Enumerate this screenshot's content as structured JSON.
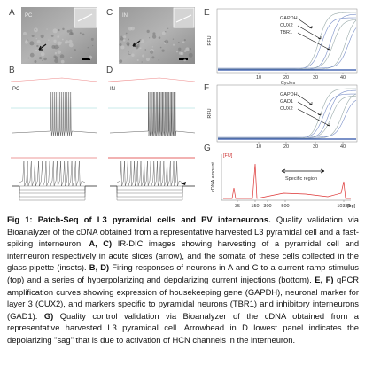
{
  "panels": {
    "A": {
      "label": "A",
      "cell": "PC"
    },
    "C": {
      "label": "C",
      "cell": "IN"
    },
    "B": {
      "label": "B",
      "cell": "PC"
    },
    "D": {
      "label": "D",
      "cell": "IN"
    },
    "E": {
      "label": "E",
      "y_label": "RFU",
      "x_label": "Cycles",
      "x_ticks": [
        "10",
        "20",
        "30",
        "40"
      ],
      "genes": [
        "GAPDH",
        "CUX2",
        "TBR1"
      ]
    },
    "F": {
      "label": "F",
      "y_label": "RFU",
      "x_ticks": [
        "10",
        "20",
        "30",
        "40"
      ],
      "genes": [
        "GAPDH",
        "GAD1",
        "CUX2"
      ]
    },
    "G": {
      "label": "G",
      "y_unit": "[FU]",
      "y_label": "cDNA amount",
      "x_ticks": [
        "35",
        "150",
        "300",
        "500",
        "10380"
      ],
      "x_unit": "[bp]",
      "annotation": "Specific region"
    }
  },
  "caption": {
    "title": "Fig 1: Patch-Seq of L3 pyramidal cells and PV interneurons.",
    "intro": "Quality validation via Bioanalyzer of the cDNA obtained from a representative harvested L3 pyramidal cell and a fast-spiking interneuron.",
    "parts": [
      {
        "label": "A, C)",
        "text": "IR-DIC images showing harvesting of a pyramidal cell and interneuron respectively in acute slices (arrow), and the somata of these cells collected in the glass pipette (insets)."
      },
      {
        "label": "B, D)",
        "text": "Firing responses of neurons in A and C to a current ramp stimulus (top) and a series of hyperpolarizing and depolarizing current injections (bottom)."
      },
      {
        "label": "E, F)",
        "text": "qPCR amplification curves showing expression of housekeeping gene (GAPDH), neuronal marker for layer 3 (CUX2), and markers specific to pyramidal neurons (TBR1) and inhibitory interneurons (GAD1)."
      },
      {
        "label": "G)",
        "text": "Quality control validation via Bioanalyzer of the cDNA obtained from a representative harvested L3 pyramidal cell. Arrowhead in D lowest panel indicates the depolarizing \"sag\" that is due to activation of HCN channels in the interneuron."
      }
    ]
  }
}
